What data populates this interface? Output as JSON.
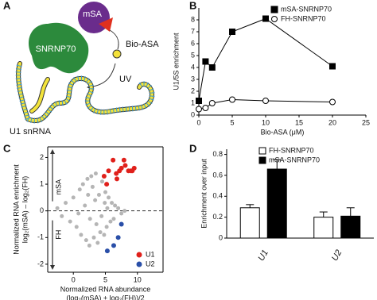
{
  "panel_labels": [
    "A",
    "B",
    "C",
    "D"
  ],
  "diagram": {
    "protein": "SNRNP70",
    "tag": "mSA",
    "probe": "Bio-ASA",
    "light": "UV",
    "rna": "U1 snRNA"
  },
  "chart_data": [
    {
      "type": "line",
      "xlabel": [
        "Bio-ASA (μM)"
      ],
      "ylabel": [
        "U1/5S enrichment"
      ],
      "x": [
        0,
        1,
        2,
        5,
        10,
        20
      ],
      "series": [
        {
          "name": "mSA-SNRNP70",
          "color": "#000000",
          "marker": "square",
          "fill": "#000000",
          "values": [
            1.2,
            4.5,
            4.0,
            7.0,
            8.1,
            4.1
          ]
        },
        {
          "name": "FH-SNRNP70",
          "color": "#000000",
          "marker": "circle",
          "fill": "#ffffff",
          "values": [
            0.5,
            0.6,
            1.0,
            1.3,
            1.2,
            1.1
          ]
        }
      ],
      "xlim": [
        0,
        25
      ],
      "xticks": [
        0,
        5,
        10,
        15,
        20,
        25
      ],
      "ylim": [
        0,
        9
      ],
      "yticks": [
        0,
        1,
        2,
        3,
        4,
        5,
        6,
        7,
        8
      ],
      "legend": "top-right"
    },
    {
      "type": "scatter",
      "xlabel": [
        "Normalized RNA abundance",
        "(log₂(mSA) + log₂(FH))/2"
      ],
      "ylabel": [
        "Normalized RNA enrichment",
        "log₂(mSA) – log₂(FH)"
      ],
      "y_arrows": [
        "mSA",
        "FH"
      ],
      "zero_line": true,
      "series": [
        {
          "color": "#b5b5b5",
          "x": [
            -2.5,
            -1.8,
            -1.2,
            -0.5,
            0,
            0.5,
            1,
            1.2,
            1.5,
            2,
            2.2,
            2.5,
            2.8,
            3,
            3.2,
            3.5,
            3.8,
            4,
            4.2,
            4.5,
            4.8,
            5,
            5.2,
            5.5,
            5.8,
            6,
            6.3,
            6.5,
            7,
            7.5,
            8,
            1.8,
            2.6,
            3.4,
            4.4,
            5.3,
            3.6,
            2.3,
            0.8,
            4.9
          ],
          "values": [
            0.1,
            -0.2,
            0.3,
            -0.4,
            0.5,
            -0.6,
            0.8,
            -0.9,
            1.0,
            -1.1,
            1.2,
            -1.3,
            1.3,
            0.9,
            -1.0,
            1.4,
            -1.2,
            0.6,
            -0.8,
            1.1,
            -0.9,
            0.7,
            -0.6,
            0.5,
            -0.4,
            0.3,
            -0.3,
            0.2,
            0.1,
            -0.1,
            0,
            0.2,
            -0.3,
            0.4,
            -0.2,
            0.1,
            -0.5,
            0.6,
            -0.1,
            0.3
          ]
        },
        {
          "name": "U1",
          "color": "#e0201b",
          "x": [
            4.8,
            5.5,
            6.2,
            6.7,
            7.2,
            7.5,
            8.1,
            8.6,
            9.0,
            9.5,
            6.8,
            5.2,
            7.9,
            9.2
          ],
          "values": [
            1.3,
            1.5,
            1.9,
            1.4,
            1.5,
            1.6,
            1.7,
            1.5,
            1.5,
            1.6,
            1.2,
            1.0,
            1.9,
            1.5
          ]
        },
        {
          "name": "U2",
          "color": "#2a4fa8",
          "x": [
            7.5,
            7.0,
            6.3,
            5.3
          ],
          "values": [
            -0.5,
            -1.0,
            -1.3,
            -1.5
          ]
        }
      ],
      "xlim": [
        -4,
        14
      ],
      "xticks": [
        0,
        5,
        10
      ],
      "ylim": [
        -2.3,
        2.4
      ],
      "yticks": [
        2,
        1,
        0,
        -1,
        -2
      ],
      "legend": "bottom-right"
    },
    {
      "type": "bar",
      "ylabel": [
        "Enrichment over input"
      ],
      "categories": [
        "U1",
        "U2"
      ],
      "series": [
        {
          "name": "FH-SNRNP70",
          "color": "#000000",
          "fill": "#ffffff",
          "values": [
            0.29,
            0.2
          ],
          "errors": [
            0.03,
            0.05
          ]
        },
        {
          "name": "mSA-SNRNP70",
          "color": "#000000",
          "fill": "#000000",
          "values": [
            0.66,
            0.21
          ],
          "errors": [
            0.09,
            0.08
          ]
        }
      ],
      "ylim": [
        0,
        0.85
      ],
      "yticks": [
        0,
        0.2,
        0.4,
        0.6,
        0.8
      ],
      "legend": "top-right"
    }
  ]
}
